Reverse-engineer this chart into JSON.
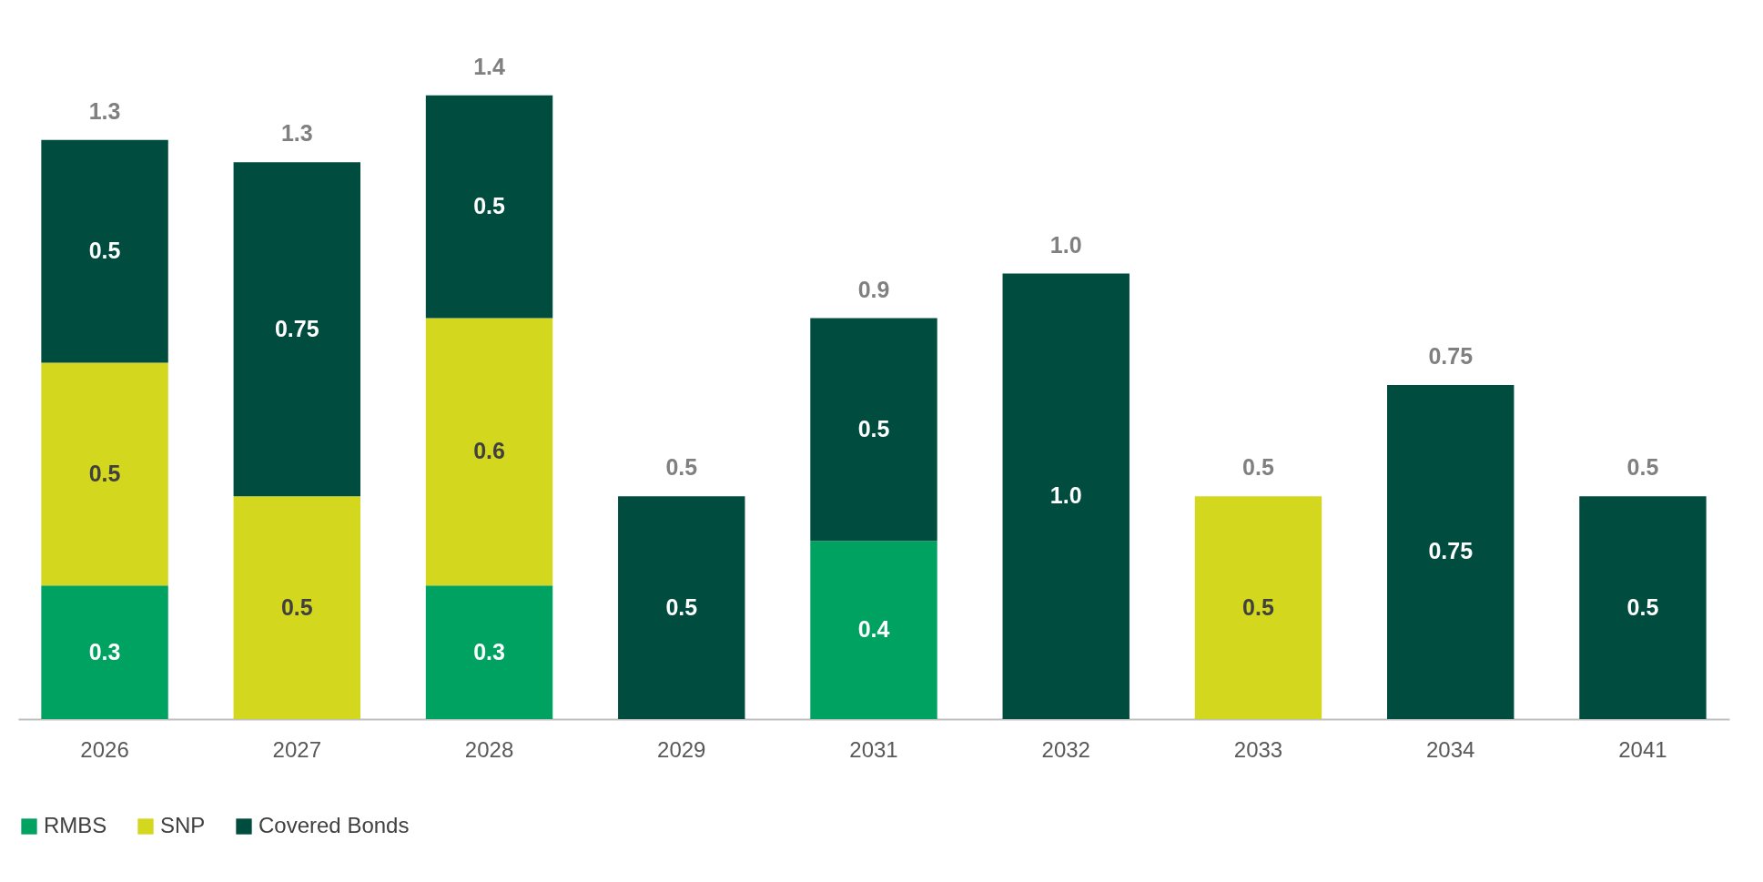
{
  "chart_data": {
    "type": "bar",
    "stacked": true,
    "categories": [
      "2026",
      "2027",
      "2028",
      "2029",
      "2031",
      "2032",
      "2033",
      "2034",
      "2041"
    ],
    "series": [
      {
        "name": "RMBS",
        "color": "#00a262",
        "values": [
          0.3,
          null,
          0.3,
          null,
          0.4,
          null,
          null,
          null,
          null
        ],
        "value_labels": [
          "0.3",
          null,
          "0.3",
          null,
          "0.4",
          null,
          null,
          null,
          null
        ]
      },
      {
        "name": "SNP",
        "color": "#d3d81e",
        "values": [
          0.5,
          0.5,
          0.6,
          null,
          null,
          null,
          0.5,
          null,
          null
        ],
        "value_labels": [
          "0.5",
          "0.5",
          "0.6",
          null,
          null,
          null,
          "0.5",
          null,
          null
        ]
      },
      {
        "name": "Covered Bonds",
        "color": "#004d40",
        "values": [
          0.5,
          0.75,
          0.5,
          0.5,
          0.5,
          1.0,
          null,
          0.75,
          0.5
        ],
        "value_labels": [
          "0.5",
          "0.75",
          "0.5",
          "0.5",
          "0.5",
          "1.0",
          null,
          "0.75",
          "0.5"
        ]
      }
    ],
    "totals": [
      "1.3",
      "1.3",
      "1.4",
      "0.5",
      "0.9",
      "1.0",
      "0.5",
      "0.75",
      "0.5"
    ],
    "legend": "bottom",
    "grid": false
  }
}
